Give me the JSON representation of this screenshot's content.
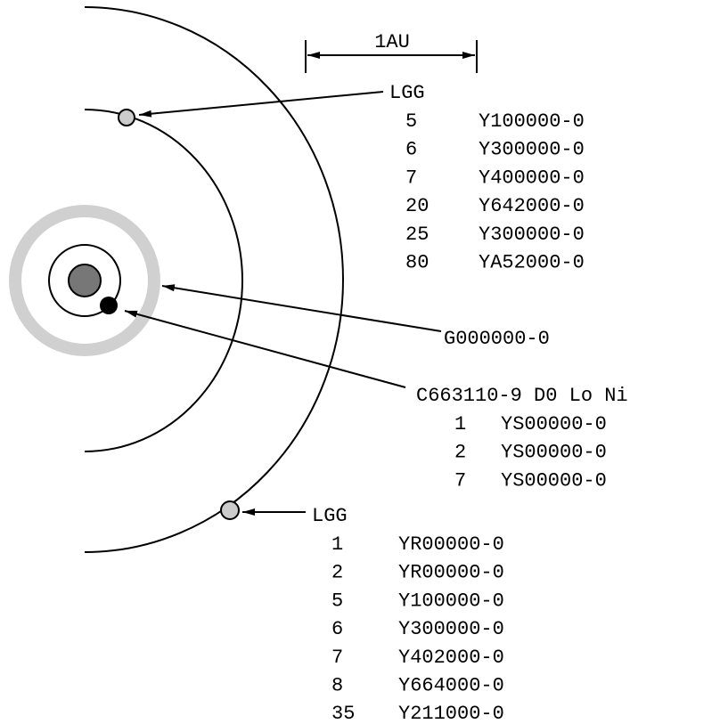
{
  "scale_label": "1AU",
  "worlds": [
    {
      "label": "LGG",
      "satellites": [
        {
          "orbit": 5,
          "code": "Y100000-0"
        },
        {
          "orbit": 6,
          "code": "Y300000-0"
        },
        {
          "orbit": 7,
          "code": "Y400000-0"
        },
        {
          "orbit": 20,
          "code": "Y642000-0"
        },
        {
          "orbit": 25,
          "code": "Y300000-0"
        },
        {
          "orbit": 80,
          "code": "YA52000-0"
        }
      ]
    },
    {
      "label": "G000000-0",
      "satellites": []
    },
    {
      "label": "C663110-9 D0 Lo Ni",
      "satellites": [
        {
          "orbit": 1,
          "code": "YS00000-0"
        },
        {
          "orbit": 2,
          "code": "YS00000-0"
        },
        {
          "orbit": 7,
          "code": "YS00000-0"
        }
      ]
    },
    {
      "label": "LGG",
      "satellites": [
        {
          "orbit": 1,
          "code": "YR00000-0"
        },
        {
          "orbit": 2,
          "code": "YR00000-0"
        },
        {
          "orbit": 5,
          "code": "Y100000-0"
        },
        {
          "orbit": 6,
          "code": "Y300000-0"
        },
        {
          "orbit": 7,
          "code": "Y402000-0"
        },
        {
          "orbit": 8,
          "code": "Y664000-0"
        },
        {
          "orbit": 35,
          "code": "Y211000-0"
        }
      ]
    }
  ]
}
